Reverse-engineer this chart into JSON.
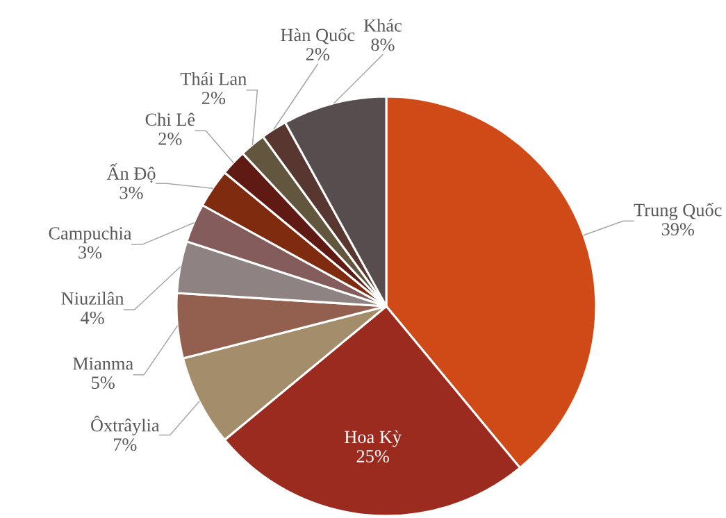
{
  "chart_data": {
    "type": "pie",
    "categories": [
      "Trung Quốc",
      "Hoa Kỳ",
      "Ôxtrâylia",
      "Mianma",
      "Niuzilân",
      "Campuchia",
      "Ấn Độ",
      "Chi Lê",
      "Thái Lan",
      "Hàn Quốc",
      "Khác"
    ],
    "values": [
      39,
      25,
      7,
      5,
      4,
      3,
      3,
      2,
      2,
      2,
      8
    ],
    "colors": [
      "#d04a17",
      "#9b2a1f",
      "#a38d6a",
      "#93604f",
      "#8e8282",
      "#845c5b",
      "#7f2b10",
      "#5f1a14",
      "#62563e",
      "#573730",
      "#584d4e"
    ],
    "value_labels": [
      "39%",
      "25%",
      "7%",
      "5%",
      "4%",
      "3%",
      "3%",
      "2%",
      "2%",
      "2%",
      "8%"
    ]
  }
}
